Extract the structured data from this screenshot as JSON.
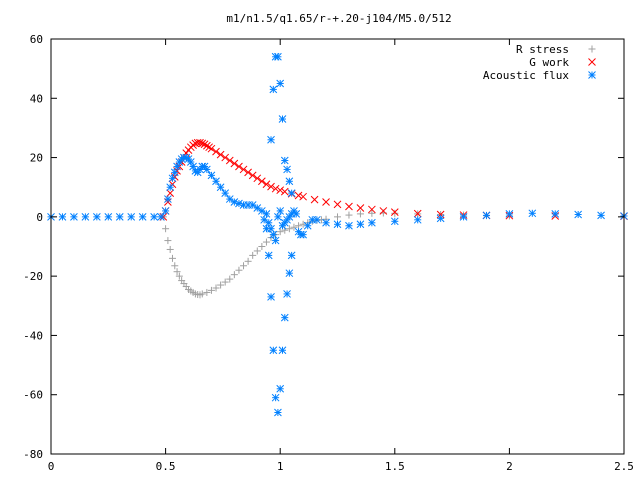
{
  "chart_data": {
    "type": "scatter",
    "title": "m1/n1.5/q1.65/r-+.20-j104/M5.0/512",
    "xlabel": "",
    "ylabel": "",
    "xlim": [
      0,
      2.5
    ],
    "ylim": [
      -80,
      60
    ],
    "grid": false,
    "legend_position": "top-right",
    "x_ticks": [
      "0",
      "0.5",
      "1",
      "1.5",
      "2",
      "2.5"
    ],
    "y_ticks": [
      "60",
      "40",
      "20",
      "0",
      "-20",
      "-40",
      "-60",
      "-80"
    ],
    "series": [
      {
        "name": "R stress",
        "marker": "plus",
        "color": "#a0a0a0",
        "x": [
          0.49,
          0.5,
          0.51,
          0.52,
          0.53,
          0.54,
          0.55,
          0.56,
          0.57,
          0.58,
          0.59,
          0.6,
          0.61,
          0.62,
          0.63,
          0.64,
          0.65,
          0.66,
          0.68,
          0.7,
          0.72,
          0.74,
          0.76,
          0.78,
          0.8,
          0.82,
          0.84,
          0.86,
          0.88,
          0.9,
          0.92,
          0.94,
          0.96,
          0.98,
          1.0,
          1.02,
          1.04,
          1.06,
          1.08,
          1.1,
          1.12,
          1.14,
          1.16,
          1.18,
          1.2,
          1.25,
          1.3,
          1.35,
          1.4,
          1.45,
          1.5,
          1.6,
          1.7,
          1.8,
          1.9,
          2.0
        ],
        "y": [
          0,
          -4,
          -8,
          -11,
          -14,
          -16.5,
          -18.5,
          -20,
          -21.5,
          -22.5,
          -23.5,
          -24.5,
          -25,
          -25.5,
          -26,
          -26.2,
          -26.3,
          -26,
          -25.5,
          -24.8,
          -24,
          -23,
          -22,
          -21,
          -19.5,
          -18,
          -16.5,
          -15,
          -13,
          -11.5,
          -10,
          -8.5,
          -7,
          -6,
          -5,
          -4.5,
          -4,
          -3.5,
          -3,
          -2.5,
          -2,
          -1.5,
          -1.2,
          -1,
          -0.8,
          0,
          0.6,
          1,
          1.2,
          1.3,
          1.2,
          1,
          0.8,
          0.6,
          0.4,
          0.3
        ]
      },
      {
        "name": "G work",
        "marker": "cross",
        "color": "#ff0000",
        "x": [
          0.49,
          0.5,
          0.51,
          0.52,
          0.53,
          0.54,
          0.55,
          0.56,
          0.57,
          0.58,
          0.59,
          0.6,
          0.61,
          0.62,
          0.63,
          0.64,
          0.65,
          0.66,
          0.67,
          0.68,
          0.69,
          0.7,
          0.72,
          0.74,
          0.76,
          0.78,
          0.8,
          0.82,
          0.84,
          0.86,
          0.88,
          0.9,
          0.92,
          0.94,
          0.96,
          0.98,
          1.0,
          1.02,
          1.05,
          1.08,
          1.1,
          1.15,
          1.2,
          1.25,
          1.3,
          1.35,
          1.4,
          1.45,
          1.5,
          1.6,
          1.7,
          1.8,
          1.9,
          2.0,
          2.2,
          2.5
        ],
        "y": [
          0,
          2,
          5,
          8,
          11,
          13.5,
          15.5,
          17,
          18.5,
          20,
          21.5,
          22.5,
          23.5,
          24.2,
          24.8,
          25,
          25,
          24.8,
          24.5,
          24,
          23.5,
          23,
          22,
          21,
          20,
          19,
          18,
          17,
          16,
          15,
          14,
          13,
          12,
          11,
          10.2,
          9.5,
          9,
          8.5,
          7.8,
          7.2,
          6.8,
          5.8,
          5,
          4.2,
          3.5,
          3,
          2.5,
          2,
          1.6,
          1.1,
          0.8,
          0.6,
          0.5,
          0.4,
          0.3,
          0.2
        ]
      },
      {
        "name": "Acoustic flux",
        "marker": "star",
        "color": "#0080ff",
        "x": [
          0,
          0.05,
          0.1,
          0.15,
          0.2,
          0.25,
          0.3,
          0.35,
          0.4,
          0.45,
          0.48,
          0.5,
          0.51,
          0.52,
          0.53,
          0.54,
          0.55,
          0.56,
          0.57,
          0.58,
          0.59,
          0.6,
          0.61,
          0.62,
          0.63,
          0.64,
          0.65,
          0.66,
          0.67,
          0.68,
          0.7,
          0.72,
          0.74,
          0.76,
          0.78,
          0.8,
          0.82,
          0.84,
          0.86,
          0.88,
          0.9,
          0.92,
          0.94,
          0.95,
          0.96,
          0.97,
          0.98,
          0.99,
          1.0,
          1.01,
          1.02,
          1.03,
          1.04,
          1.05,
          1.06,
          1.07,
          1.08,
          1.09,
          1.1,
          1.12,
          1.14,
          1.16,
          1.2,
          1.25,
          1.3,
          1.35,
          1.4,
          1.5,
          1.6,
          1.7,
          1.8,
          1.9,
          2.0,
          2.1,
          2.2,
          2.3,
          2.4,
          2.5,
          0.96,
          0.97,
          0.98,
          0.99,
          1.0,
          1.01,
          1.02,
          1.03,
          1.04,
          1.05,
          0.96,
          0.97,
          0.98,
          0.99,
          1.0,
          1.01,
          1.02,
          1.03,
          1.04,
          1.05,
          0.93,
          0.94,
          0.95
        ],
        "y": [
          0,
          0,
          0,
          0,
          0,
          0,
          0,
          0,
          0,
          0,
          0,
          2,
          6,
          10,
          13,
          15,
          17,
          18.5,
          19.5,
          20,
          20,
          19.5,
          18.5,
          17,
          15.5,
          15,
          16,
          17,
          17,
          16,
          14,
          12,
          10,
          8,
          6,
          5,
          4.5,
          4,
          4,
          4,
          3,
          2,
          1,
          -2,
          -4,
          -6,
          -8,
          0,
          2,
          -3,
          -2,
          -1,
          0,
          1,
          2,
          1,
          -5,
          -6,
          -6,
          -3,
          -1,
          -1,
          -2,
          -2.5,
          -3,
          -2.5,
          -2,
          -1.5,
          -1,
          -0.5,
          0,
          0.5,
          1,
          1.2,
          1,
          0.8,
          0.5,
          0.3,
          26,
          43,
          54,
          54,
          45,
          33,
          19,
          16,
          12,
          8,
          -27,
          -45,
          -61,
          -66,
          -58,
          -45,
          -34,
          -26,
          -19,
          -13,
          -1,
          -4,
          -13
        ]
      }
    ]
  }
}
